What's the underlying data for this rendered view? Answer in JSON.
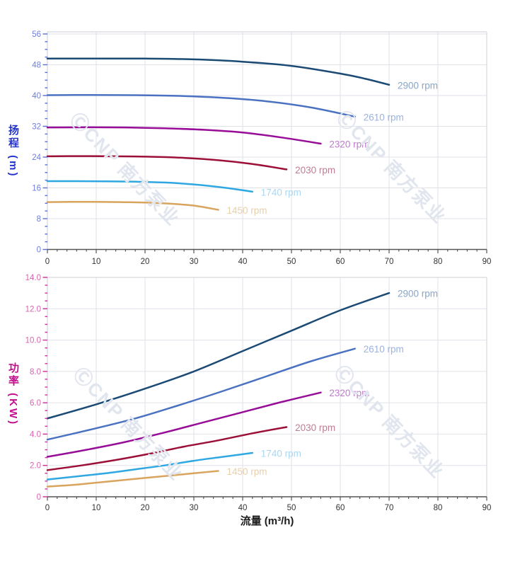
{
  "watermark": {
    "text": "ⒸCNP 南方泵业",
    "color": "#e1e5ee"
  },
  "chart_data": [
    {
      "type": "line",
      "title": "",
      "xlabel": "",
      "ylabel": "扬程 (m)",
      "xlim": [
        0,
        90
      ],
      "ylim": [
        0,
        56
      ],
      "grid": true,
      "legend_position": "labels-at-line-ends",
      "x_major": 10,
      "x_minor": 2,
      "y_major": 8,
      "y_minor": 2,
      "x_tick_labels": [
        "0",
        "10",
        "20",
        "30",
        "40",
        "50",
        "60",
        "70",
        "80",
        "90"
      ],
      "y_tick_labels": [
        "0",
        "8",
        "16",
        "24",
        "32",
        "40",
        "48",
        "56"
      ],
      "axis_colors": {
        "y_label": "#2433cc",
        "y_tick_text": "#6e7ed9",
        "y_tick_mark": "#5b6fd6",
        "x_tick_text": "#333333",
        "axis_line": "#555555",
        "grid": "#e0e2e8",
        "border": "#dcdee4",
        "y_axis_line": "#c9cdd8"
      },
      "series": [
        {
          "name": "2900 rpm",
          "color": "#1b4a74",
          "label_color": "#8aa5c6",
          "points": [
            [
              0,
              49.6
            ],
            [
              10,
              49.6
            ],
            [
              20,
              49.6
            ],
            [
              30,
              49.4
            ],
            [
              40,
              48.8
            ],
            [
              50,
              47.7
            ],
            [
              60,
              45.7
            ],
            [
              65,
              44.4
            ],
            [
              70,
              42.8
            ]
          ]
        },
        {
          "name": "2610 rpm",
          "color": "#4a72c0",
          "label_color": "#9cb2e2",
          "points": [
            [
              0,
              40.1
            ],
            [
              9,
              40.15
            ],
            [
              18,
              40.1
            ],
            [
              27,
              39.9
            ],
            [
              36,
              39.4
            ],
            [
              45,
              38.5
            ],
            [
              54,
              36.9
            ],
            [
              63,
              34.5
            ]
          ]
        },
        {
          "name": "2320 rpm",
          "color": "#970d97",
          "label_color": "#bc7cc8",
          "points": [
            [
              0,
              31.7
            ],
            [
              8,
              31.75
            ],
            [
              16,
              31.7
            ],
            [
              24,
              31.5
            ],
            [
              32,
              31.1
            ],
            [
              40,
              30.4
            ],
            [
              48,
              29.1
            ],
            [
              56,
              27.5
            ]
          ]
        },
        {
          "name": "2030 rpm",
          "color": "#9c1038",
          "label_color": "#bd7e92",
          "points": [
            [
              0,
              24.2
            ],
            [
              7,
              24.25
            ],
            [
              14,
              24.2
            ],
            [
              21,
              24.1
            ],
            [
              28,
              23.8
            ],
            [
              35,
              23.2
            ],
            [
              42,
              22.2
            ],
            [
              49,
              20.8
            ]
          ]
        },
        {
          "name": "1740 rpm",
          "color": "#2fa8e2",
          "label_color": "#abd7f2",
          "points": [
            [
              0,
              17.75
            ],
            [
              6,
              17.75
            ],
            [
              12,
              17.7
            ],
            [
              18,
              17.6
            ],
            [
              24,
              17.4
            ],
            [
              30,
              16.9
            ],
            [
              36,
              16.1
            ],
            [
              42,
              15.0
            ]
          ]
        },
        {
          "name": "1450 rpm",
          "color": "#d8a45e",
          "label_color": "#e8d0a9",
          "points": [
            [
              0,
              12.3
            ],
            [
              5,
              12.35
            ],
            [
              10,
              12.35
            ],
            [
              15,
              12.3
            ],
            [
              20,
              12.2
            ],
            [
              25,
              11.9
            ],
            [
              30,
              11.4
            ],
            [
              35,
              10.3
            ]
          ]
        }
      ]
    },
    {
      "type": "line",
      "title": "",
      "xlabel": "流量 (m³/h)",
      "ylabel": "功率 (KW)",
      "xlim": [
        0,
        90
      ],
      "ylim": [
        0,
        14
      ],
      "grid": true,
      "legend_position": "labels-at-line-ends",
      "x_major": 10,
      "x_minor": 2,
      "y_major": 2,
      "y_minor": 0.5,
      "x_tick_labels": [
        "0",
        "10",
        "20",
        "30",
        "40",
        "50",
        "60",
        "70",
        "80",
        "90"
      ],
      "y_tick_labels": [
        "0",
        "2.0",
        "4.0",
        "6.0",
        "8.0",
        "10.0",
        "12.0",
        "14.0"
      ],
      "axis_colors": {
        "y_label": "#c1108c",
        "y_tick_text": "#d863ae",
        "y_tick_mark": "#cc2f9b",
        "x_tick_text": "#333333",
        "axis_line": "#555555",
        "grid": "#e0e2e8",
        "border": "#dcdee4",
        "y_axis_line": "#c9cdd8"
      },
      "series": [
        {
          "name": "2900 rpm",
          "color": "#1b4a74",
          "label_color": "#8aa5c6",
          "points": [
            [
              0,
              5.0
            ],
            [
              10,
              5.9
            ],
            [
              20,
              6.9
            ],
            [
              30,
              8.0
            ],
            [
              40,
              9.3
            ],
            [
              50,
              10.6
            ],
            [
              60,
              11.9
            ],
            [
              70,
              13.0
            ]
          ]
        },
        {
          "name": "2610 rpm",
          "color": "#4a72c0",
          "label_color": "#9cb2e2",
          "points": [
            [
              0,
              3.65
            ],
            [
              9,
              4.3
            ],
            [
              18,
              5.0
            ],
            [
              27,
              5.85
            ],
            [
              36,
              6.75
            ],
            [
              45,
              7.7
            ],
            [
              54,
              8.65
            ],
            [
              63,
              9.45
            ]
          ]
        },
        {
          "name": "2320 rpm",
          "color": "#970d97",
          "label_color": "#bc7cc8",
          "points": [
            [
              0,
              2.55
            ],
            [
              8,
              3.0
            ],
            [
              16,
              3.5
            ],
            [
              24,
              4.1
            ],
            [
              32,
              4.75
            ],
            [
              40,
              5.4
            ],
            [
              48,
              6.05
            ],
            [
              56,
              6.65
            ]
          ]
        },
        {
          "name": "2030 rpm",
          "color": "#9c1038",
          "label_color": "#bd7e92",
          "points": [
            [
              0,
              1.7
            ],
            [
              7,
              2.0
            ],
            [
              14,
              2.35
            ],
            [
              21,
              2.75
            ],
            [
              28,
              3.2
            ],
            [
              35,
              3.6
            ],
            [
              42,
              4.05
            ],
            [
              49,
              4.45
            ]
          ]
        },
        {
          "name": "1740 rpm",
          "color": "#2fa8e2",
          "label_color": "#abd7f2",
          "points": [
            [
              0,
              1.1
            ],
            [
              6,
              1.3
            ],
            [
              12,
              1.5
            ],
            [
              18,
              1.75
            ],
            [
              24,
              2.0
            ],
            [
              30,
              2.3
            ],
            [
              36,
              2.55
            ],
            [
              42,
              2.8
            ]
          ]
        },
        {
          "name": "1450 rpm",
          "color": "#d8a45e",
          "label_color": "#e8d0a9",
          "points": [
            [
              0,
              0.65
            ],
            [
              5,
              0.75
            ],
            [
              10,
              0.9
            ],
            [
              15,
              1.05
            ],
            [
              20,
              1.2
            ],
            [
              25,
              1.35
            ],
            [
              30,
              1.5
            ],
            [
              35,
              1.65
            ]
          ]
        }
      ]
    }
  ]
}
